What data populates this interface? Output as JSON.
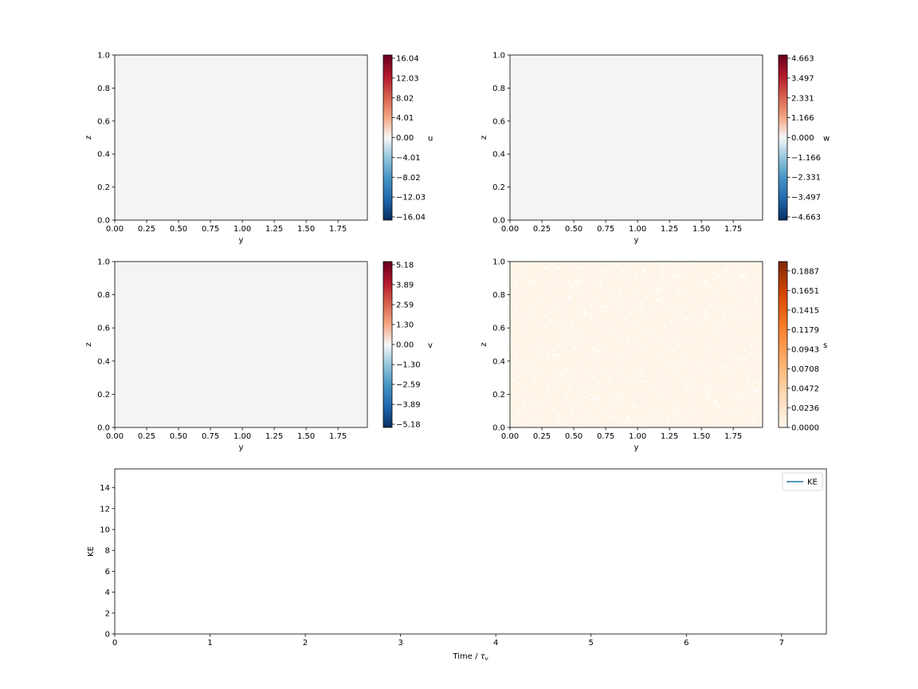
{
  "figure": {
    "field_panels": [
      {
        "name": "u",
        "xlabel": "y",
        "ylabel": "z",
        "xlim": [
          0,
          1.98
        ],
        "ylim": [
          0,
          1.0
        ],
        "xticks": [
          "0.00",
          "0.25",
          "0.50",
          "0.75",
          "1.00",
          "1.25",
          "1.50",
          "1.75"
        ],
        "xtick_values": [
          0,
          0.25,
          0.5,
          0.75,
          1.0,
          1.25,
          1.5,
          1.75
        ],
        "yticks": [
          "0.0",
          "0.2",
          "0.4",
          "0.6",
          "0.8",
          "1.0"
        ],
        "ytick_values": [
          0,
          0.2,
          0.4,
          0.6,
          0.8,
          1.0
        ],
        "field_color": "#f2f4f6",
        "speckle": false,
        "colorbar": {
          "label": "u",
          "cmap": "RdBu_r",
          "range": [
            -16.04,
            16.04
          ],
          "ticks": [
            "16.04",
            "12.03",
            "8.02",
            "4.01",
            "0.00",
            "−4.01",
            "−8.02",
            "−12.03",
            "−16.04"
          ],
          "tick_values": [
            16.04,
            12.03,
            8.02,
            4.01,
            0,
            -4.01,
            -8.02,
            -12.03,
            -16.04
          ]
        }
      },
      {
        "name": "w",
        "xlabel": "y",
        "ylabel": "z",
        "xlim": [
          0,
          1.98
        ],
        "ylim": [
          0,
          1.0
        ],
        "xticks": [
          "0.00",
          "0.25",
          "0.50",
          "0.75",
          "1.00",
          "1.25",
          "1.50",
          "1.75"
        ],
        "xtick_values": [
          0,
          0.25,
          0.5,
          0.75,
          1.0,
          1.25,
          1.5,
          1.75
        ],
        "yticks": [
          "0.0",
          "0.2",
          "0.4",
          "0.6",
          "0.8",
          "1.0"
        ],
        "ytick_values": [
          0,
          0.2,
          0.4,
          0.6,
          0.8,
          1.0
        ],
        "field_color": "#f2f4f6",
        "speckle": false,
        "colorbar": {
          "label": "w",
          "cmap": "RdBu_r",
          "range": [
            -4.663,
            4.663
          ],
          "ticks": [
            "4.663",
            "3.497",
            "2.331",
            "1.166",
            "0.000",
            "−1.166",
            "−2.331",
            "−3.497",
            "−4.663"
          ],
          "tick_values": [
            4.663,
            3.497,
            2.331,
            1.166,
            0,
            -1.166,
            -2.331,
            -3.497,
            -4.663
          ]
        }
      },
      {
        "name": "v",
        "xlabel": "y",
        "ylabel": "z",
        "xlim": [
          0,
          1.98
        ],
        "ylim": [
          0,
          1.0
        ],
        "xticks": [
          "0.00",
          "0.25",
          "0.50",
          "0.75",
          "1.00",
          "1.25",
          "1.50",
          "1.75"
        ],
        "xtick_values": [
          0,
          0.25,
          0.5,
          0.75,
          1.0,
          1.25,
          1.5,
          1.75
        ],
        "yticks": [
          "0.0",
          "0.2",
          "0.4",
          "0.6",
          "0.8",
          "1.0"
        ],
        "ytick_values": [
          0,
          0.2,
          0.4,
          0.6,
          0.8,
          1.0
        ],
        "field_color": "#f2f4f6",
        "speckle": false,
        "colorbar": {
          "label": "v",
          "cmap": "RdBu_r",
          "range": [
            -5.18,
            5.18
          ],
          "ticks": [
            "5.18",
            "3.89",
            "2.59",
            "1.30",
            "0.00",
            "−1.30",
            "−2.59",
            "−3.89",
            "−5.18"
          ],
          "tick_values": [
            5.18,
            3.89,
            2.59,
            1.3,
            0,
            -1.3,
            -2.59,
            -3.89,
            -5.18
          ]
        }
      },
      {
        "name": "s",
        "xlabel": "y",
        "ylabel": "z",
        "xlim": [
          0,
          1.98
        ],
        "ylim": [
          0,
          1.0
        ],
        "xticks": [
          "0.00",
          "0.25",
          "0.50",
          "0.75",
          "1.00",
          "1.25",
          "1.50",
          "1.75"
        ],
        "xtick_values": [
          0,
          0.25,
          0.5,
          0.75,
          1.0,
          1.25,
          1.5,
          1.75
        ],
        "yticks": [
          "0.0",
          "0.2",
          "0.4",
          "0.6",
          "0.8",
          "1.0"
        ],
        "ytick_values": [
          0,
          0.2,
          0.4,
          0.6,
          0.8,
          1.0
        ],
        "field_color": "#fff5e8",
        "speckle": true,
        "colorbar": {
          "label": "s",
          "cmap": "Oranges",
          "range": [
            0,
            0.2
          ],
          "ticks": [
            "0.1887",
            "0.1651",
            "0.1415",
            "0.1179",
            "0.0943",
            "0.0708",
            "0.0472",
            "0.0236",
            "0.0000"
          ],
          "tick_values": [
            0.1887,
            0.1651,
            0.1415,
            0.1179,
            0.0943,
            0.0708,
            0.0472,
            0.0236,
            0
          ]
        }
      }
    ]
  },
  "chart_data": {
    "type": "line",
    "title": "",
    "xlabel_main": "Time / ",
    "xlabel_sym": "τ",
    "xlabel_sub": "ν",
    "ylabel": "KE",
    "xlim": [
      0,
      7.47
    ],
    "ylim": [
      0,
      15.8
    ],
    "xticks": [
      "0",
      "1",
      "2",
      "3",
      "4",
      "5",
      "6",
      "7"
    ],
    "xtick_values": [
      0,
      1,
      2,
      3,
      4,
      5,
      6,
      7
    ],
    "yticks": [
      "0",
      "2",
      "4",
      "6",
      "8",
      "10",
      "12",
      "14"
    ],
    "ytick_values": [
      0,
      2,
      4,
      6,
      8,
      10,
      12,
      14
    ],
    "legend_position": "top-right",
    "series": [
      {
        "name": "KE",
        "color": "#1f77b4",
        "x": [],
        "y": []
      }
    ]
  }
}
